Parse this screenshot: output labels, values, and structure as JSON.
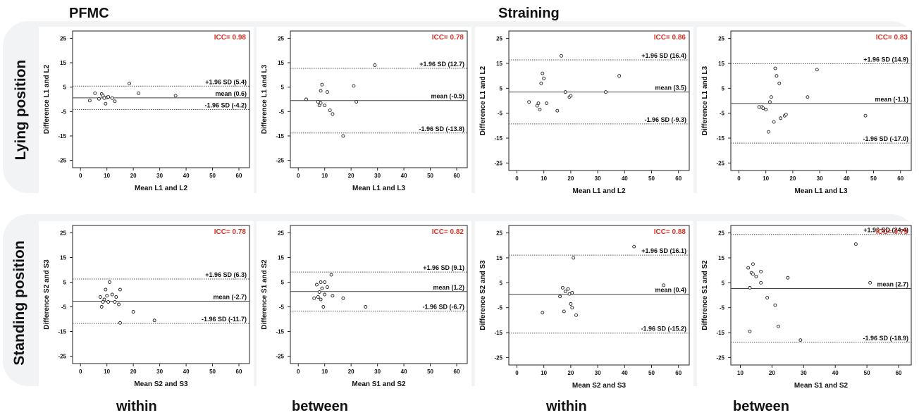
{
  "headers": {
    "left_section": "PFMC",
    "right_section": "Straining",
    "row_labels": [
      "Lying position",
      "Standing position"
    ],
    "col_labels": [
      "within",
      "between",
      "within",
      "between"
    ]
  },
  "colors": {
    "icc_text": "#d93025",
    "line": "#444444",
    "dotted": "#555555",
    "text": "#111111",
    "row_background": "#f2f3f5"
  },
  "chart_data": [
    {
      "type": "scatter",
      "subtype": "bland-altman",
      "icc": "ICC= 0.98",
      "xlabel": "Mean L1 and L2",
      "ylabel": "Difference L1 and L2",
      "xlim": [
        -3,
        64
      ],
      "ylim": [
        -28,
        28
      ],
      "xticks": [
        0,
        10,
        20,
        30,
        40,
        50,
        60
      ],
      "yticks": [
        25,
        15,
        5,
        -5,
        -15,
        -25
      ],
      "ytick_labels": [
        "25",
        "15",
        "5",
        "-5",
        "-15",
        "-25"
      ],
      "reference_lines": [
        {
          "label": "+1.96 SD (5.4)",
          "value": 5.4,
          "style": "dotted"
        },
        {
          "label": "mean (0.6)",
          "value": 0.6,
          "style": "solid"
        },
        {
          "label": "-1.96 SD (-4.2)",
          "value": -4.2,
          "style": "dotted"
        }
      ],
      "points": [
        [
          3.5,
          -0.5
        ],
        [
          5.5,
          2.5
        ],
        [
          7,
          0.2
        ],
        [
          8,
          2.2
        ],
        [
          8.5,
          1.5
        ],
        [
          9,
          0.5
        ],
        [
          9.5,
          -1.8
        ],
        [
          10,
          0.8
        ],
        [
          10.5,
          1
        ],
        [
          12,
          0.5
        ],
        [
          13,
          -0.8
        ],
        [
          18.5,
          6.5
        ],
        [
          22,
          2.5
        ],
        [
          36,
          1.5
        ]
      ]
    },
    {
      "type": "scatter",
      "subtype": "bland-altman",
      "icc": "ICC= 0.78",
      "xlabel": "Mean L1 and L3",
      "ylabel": "Difference L1 and L3",
      "xlim": [
        -3,
        64
      ],
      "ylim": [
        -28,
        28
      ],
      "xticks": [
        0,
        10,
        20,
        30,
        40,
        50,
        60
      ],
      "yticks": [
        25,
        15,
        5,
        -5,
        -15,
        -25
      ],
      "ytick_labels": [
        "25",
        "15",
        "5",
        "-5",
        "-15",
        "-25"
      ],
      "reference_lines": [
        {
          "label": "+1.96 SD (12.7)",
          "value": 12.7,
          "style": "dotted"
        },
        {
          "label": "mean (-0.5)",
          "value": -0.5,
          "style": "solid"
        },
        {
          "label": "-1.96 SD (-13.8)",
          "value": -13.8,
          "style": "dotted"
        }
      ],
      "points": [
        [
          3,
          0
        ],
        [
          7.5,
          -1
        ],
        [
          8,
          -2.5
        ],
        [
          8.5,
          -1.5
        ],
        [
          8.5,
          3.5
        ],
        [
          9,
          6
        ],
        [
          10,
          -2.5
        ],
        [
          11,
          3
        ],
        [
          12,
          -4.5
        ],
        [
          13,
          -6
        ],
        [
          17,
          -15
        ],
        [
          21,
          5.5
        ],
        [
          22,
          -1
        ],
        [
          29,
          14
        ]
      ]
    },
    {
      "type": "scatter",
      "subtype": "bland-altman",
      "icc": "ICC= 0.86",
      "xlabel": "Mean L1 and L2",
      "ylabel": "Difference L1 and L2",
      "xlim": [
        -3,
        64
      ],
      "ylim": [
        -28,
        28
      ],
      "xticks": [
        0,
        10,
        20,
        30,
        40,
        50,
        60
      ],
      "yticks": [
        25,
        15,
        5,
        -5,
        -15,
        -25
      ],
      "ytick_labels": [
        "25",
        "15",
        "5",
        "-5",
        "-15",
        "-25"
      ],
      "reference_lines": [
        {
          "label": "+1.96 SD (16.4)",
          "value": 16.4,
          "style": "dotted"
        },
        {
          "label": "mean (3.5)",
          "value": 3.5,
          "style": "solid"
        },
        {
          "label": "-1.96 SD (-9.3)",
          "value": -9.3,
          "style": "dotted"
        }
      ],
      "points": [
        [
          4.5,
          -0.5
        ],
        [
          7.5,
          -2
        ],
        [
          8,
          -1
        ],
        [
          8.5,
          -3.5
        ],
        [
          9,
          7
        ],
        [
          9.5,
          11
        ],
        [
          10,
          9
        ],
        [
          11,
          -1
        ],
        [
          15,
          -4
        ],
        [
          16.5,
          18
        ],
        [
          18,
          3.5
        ],
        [
          19.5,
          1.5
        ],
        [
          20,
          2
        ],
        [
          33,
          3.5
        ],
        [
          38,
          10
        ]
      ]
    },
    {
      "type": "scatter",
      "subtype": "bland-altman",
      "icc": "ICC= 0.83",
      "xlabel": "Mean L1 and L3",
      "ylabel": "Difference L1 and L3",
      "xlim": [
        -3,
        64
      ],
      "ylim": [
        -28,
        28
      ],
      "xticks": [
        0,
        10,
        20,
        30,
        40,
        50,
        60
      ],
      "yticks": [
        25,
        15,
        5,
        -5,
        -15,
        -25
      ],
      "ytick_labels": [
        "25",
        "15",
        "5",
        "-5",
        "-15",
        "-25"
      ],
      "reference_lines": [
        {
          "label": "+1.96 SD (14.9)",
          "value": 14.9,
          "style": "dotted"
        },
        {
          "label": "mean (-1.1)",
          "value": -1.1,
          "style": "solid"
        },
        {
          "label": "-1.96 SD (-17.0)",
          "value": -17.0,
          "style": "dotted"
        }
      ],
      "points": [
        [
          7.5,
          -2.5
        ],
        [
          8.5,
          -2.5
        ],
        [
          9,
          -3
        ],
        [
          10,
          -3.5
        ],
        [
          11,
          -12.5
        ],
        [
          11.5,
          -0.5
        ],
        [
          12,
          1.5
        ],
        [
          13,
          -8.5
        ],
        [
          13.5,
          13
        ],
        [
          14,
          10
        ],
        [
          15,
          7
        ],
        [
          15.5,
          -7
        ],
        [
          17,
          -6
        ],
        [
          17.5,
          -5.5
        ],
        [
          25.5,
          1.5
        ],
        [
          29,
          12.5
        ],
        [
          47,
          -6
        ]
      ]
    },
    {
      "type": "scatter",
      "subtype": "bland-altman",
      "icc": "ICC= 0.78",
      "xlabel": "Mean S2 and S3",
      "ylabel": "Difference S2 and S3",
      "xlim": [
        -3,
        64
      ],
      "ylim": [
        -28,
        28
      ],
      "xticks": [
        0,
        10,
        20,
        30,
        40,
        50,
        60
      ],
      "yticks": [
        25,
        15,
        5,
        -5,
        -15,
        -25
      ],
      "ytick_labels": [
        "25",
        "15",
        "5",
        "-5",
        "-15",
        "-25"
      ],
      "reference_lines": [
        {
          "label": "+1.96 SD (6.3)",
          "value": 6.3,
          "style": "dotted"
        },
        {
          "label": "mean (-2.7)",
          "value": -2.7,
          "style": "solid"
        },
        {
          "label": "-1.96 SD (-11.7)",
          "value": -11.7,
          "style": "dotted"
        }
      ],
      "points": [
        [
          7.5,
          -1
        ],
        [
          8,
          -5
        ],
        [
          8.5,
          -3
        ],
        [
          9,
          -2
        ],
        [
          9.5,
          2
        ],
        [
          10,
          -0.5
        ],
        [
          10.5,
          -3
        ],
        [
          11,
          5
        ],
        [
          12,
          0
        ],
        [
          13,
          -3
        ],
        [
          13.5,
          -1
        ],
        [
          14.5,
          -4
        ],
        [
          15,
          -11.5
        ],
        [
          15,
          2
        ],
        [
          20,
          -7
        ],
        [
          28,
          -10.5
        ]
      ]
    },
    {
      "type": "scatter",
      "subtype": "bland-altman",
      "icc": "ICC= 0.82",
      "xlabel": "Mean S1 and S2",
      "ylabel": "Difference S1 and S2",
      "xlim": [
        -3,
        64
      ],
      "ylim": [
        -28,
        28
      ],
      "xticks": [
        0,
        10,
        20,
        30,
        40,
        50,
        60
      ],
      "yticks": [
        25,
        15,
        5,
        -5,
        -15,
        -25
      ],
      "ytick_labels": [
        "25",
        "15",
        "5",
        "-5",
        "-15",
        "-25"
      ],
      "reference_lines": [
        {
          "label": "+1.96 SD (9.1)",
          "value": 9.1,
          "style": "dotted"
        },
        {
          "label": "mean (1.2)",
          "value": 1.2,
          "style": "solid"
        },
        {
          "label": "-1.96 SD (-6.7)",
          "value": -6.7,
          "style": "dotted"
        }
      ],
      "points": [
        [
          6,
          -1.5
        ],
        [
          7,
          4
        ],
        [
          7.5,
          -1
        ],
        [
          8,
          1
        ],
        [
          8.5,
          -2
        ],
        [
          8.5,
          5
        ],
        [
          9,
          2.5
        ],
        [
          9.5,
          -5
        ],
        [
          10,
          5
        ],
        [
          10,
          0
        ],
        [
          11,
          3
        ],
        [
          12.5,
          8
        ],
        [
          13,
          -0.5
        ],
        [
          17,
          -1.5
        ],
        [
          25.5,
          -5
        ]
      ]
    },
    {
      "type": "scatter",
      "subtype": "bland-altman",
      "icc": "ICC= 0.88",
      "xlabel": "Mean S2 and S3",
      "ylabel": "Difference S2 and S3",
      "xlim": [
        -3,
        64
      ],
      "ylim": [
        -28,
        28
      ],
      "xticks": [
        0,
        10,
        20,
        30,
        40,
        50,
        60
      ],
      "yticks": [
        25,
        15,
        5,
        -5,
        -15,
        -25
      ],
      "ytick_labels": [
        "25",
        "15",
        "5",
        "-5",
        "-15",
        "-25"
      ],
      "reference_lines": [
        {
          "label": "+1.96 SD (16.1)",
          "value": 16.1,
          "style": "dotted"
        },
        {
          "label": "mean (0.4)",
          "value": 0.4,
          "style": "solid"
        },
        {
          "label": "-1.96 SD (-15.2)",
          "value": -15.2,
          "style": "dotted"
        }
      ],
      "points": [
        [
          9.5,
          -7
        ],
        [
          16,
          -0.5
        ],
        [
          17,
          3
        ],
        [
          17.5,
          -6.5
        ],
        [
          18,
          1.5
        ],
        [
          19,
          2.5
        ],
        [
          19.5,
          0.5
        ],
        [
          20,
          -3.5
        ],
        [
          20.5,
          -5
        ],
        [
          20.5,
          1
        ],
        [
          21,
          15
        ],
        [
          22,
          -8
        ],
        [
          43.5,
          19.5
        ],
        [
          54.5,
          4
        ]
      ]
    },
    {
      "type": "scatter",
      "subtype": "bland-altman",
      "icc": "ICC= 0.79",
      "xlabel": "Mean S1 and S2",
      "ylabel": "Difference S1 and S2",
      "xlim": [
        7,
        64
      ],
      "ylim": [
        -28,
        28
      ],
      "xticks": [
        10,
        20,
        30,
        40,
        50,
        60
      ],
      "yticks": [
        25,
        15,
        5,
        -5,
        -15,
        -25
      ],
      "ytick_labels": [
        "25",
        "15",
        "5",
        "-5",
        "-15",
        "-25"
      ],
      "reference_lines": [
        {
          "label": "+1.96 SD (24.4)",
          "value": 24.4,
          "style": "dotted"
        },
        {
          "label": "mean (2.7)",
          "value": 2.7,
          "style": "solid"
        },
        {
          "label": "-1.96 SD (-18.9)",
          "value": -18.9,
          "style": "dotted"
        }
      ],
      "points": [
        [
          12.5,
          11
        ],
        [
          13,
          3
        ],
        [
          13,
          -14.5
        ],
        [
          13.5,
          9
        ],
        [
          14,
          12.5
        ],
        [
          14,
          8.5
        ],
        [
          15,
          7.5
        ],
        [
          16.5,
          9.5
        ],
        [
          16.5,
          5
        ],
        [
          18.5,
          -1
        ],
        [
          21,
          -4
        ],
        [
          22,
          -12.5
        ],
        [
          25,
          7
        ],
        [
          29,
          -18
        ],
        [
          46.5,
          20.5
        ],
        [
          51,
          5
        ]
      ]
    }
  ]
}
